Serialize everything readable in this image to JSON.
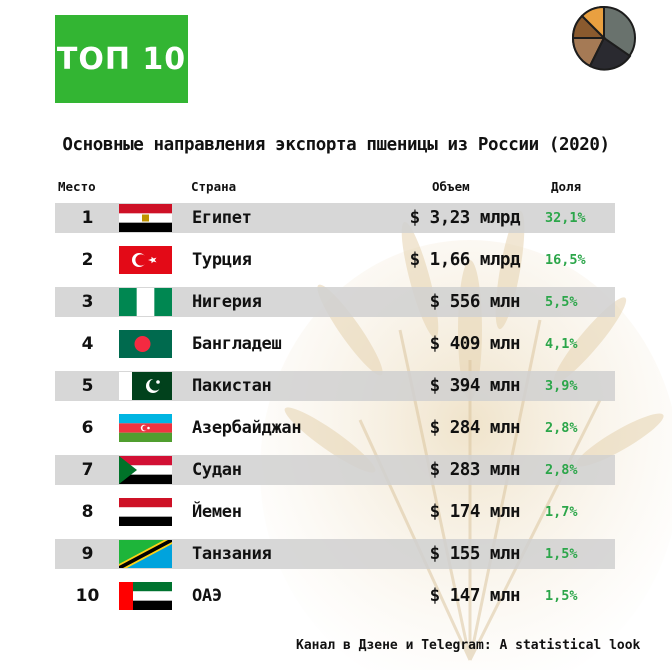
{
  "badge": "ТОП 10",
  "title": "Основные направления экспорта пшеницы из России (2020)",
  "headers": {
    "rank": "Место",
    "country": "Страна",
    "value": "Объем",
    "share": "Доля"
  },
  "footer": "Канал в Дзене и Telegram: A statistical look",
  "colors": {
    "badge": "#33b533",
    "share_text": "#2ca64a",
    "row_shade": "#d0d0d0"
  },
  "rows": [
    {
      "rank": "1",
      "country": "Египет",
      "value": "$ 3,23 млрд",
      "share": "32,1%",
      "flag": "egypt-flag"
    },
    {
      "rank": "2",
      "country": "Турция",
      "value": "$ 1,66 млрд",
      "share": "16,5%",
      "flag": "turkey-flag"
    },
    {
      "rank": "3",
      "country": "Нигерия",
      "value": "$ 556 млн",
      "share": "5,5%",
      "flag": "nigeria-flag"
    },
    {
      "rank": "4",
      "country": "Бангладеш",
      "value": "$ 409 млн",
      "share": "4,1%",
      "flag": "bangladesh-flag"
    },
    {
      "rank": "5",
      "country": "Пакистан",
      "value": "$ 394 млн",
      "share": "3,9%",
      "flag": "pakistan-flag"
    },
    {
      "rank": "6",
      "country": "Азербайджан",
      "value": "$ 284 млн",
      "share": "2,8%",
      "flag": "azerbaijan-flag"
    },
    {
      "rank": "7",
      "country": "Судан",
      "value": "$ 283 млн",
      "share": "2,8%",
      "flag": "sudan-flag"
    },
    {
      "rank": "8",
      "country": "Йемен",
      "value": "$ 174 млн",
      "share": "1,7%",
      "flag": "yemen-flag"
    },
    {
      "rank": "9",
      "country": "Танзания",
      "value": "$ 155 млн",
      "share": "1,5%",
      "flag": "tanzania-flag"
    },
    {
      "rank": "10",
      "country": "ОАЭ",
      "value": "$ 147 млн",
      "share": "1,5%",
      "flag": "uae-flag"
    }
  ],
  "chart_data": {
    "type": "table",
    "title": "Основные направления экспорта пшеницы из России (2020)",
    "columns": [
      "Место",
      "Страна",
      "Объем",
      "Доля"
    ],
    "rows": [
      [
        "1",
        "Египет",
        "$ 3,23 млрд",
        "32,1%"
      ],
      [
        "2",
        "Турция",
        "$ 1,66 млрд",
        "16,5%"
      ],
      [
        "3",
        "Нигерия",
        "$ 556 млн",
        "5,5%"
      ],
      [
        "4",
        "Бангладеш",
        "$ 409 млн",
        "4,1%"
      ],
      [
        "5",
        "Пакистан",
        "$ 394 млн",
        "3,9%"
      ],
      [
        "6",
        "Азербайджан",
        "$ 284 млн",
        "2,8%"
      ],
      [
        "7",
        "Судан",
        "$ 283 млн",
        "2,8%"
      ],
      [
        "8",
        "Йемен",
        "$ 174 млн",
        "1,7%"
      ],
      [
        "9",
        "Танзания",
        "$ 155 млн",
        "1,5%"
      ],
      [
        "10",
        "ОАЭ",
        "$ 147 млн",
        "1,5%"
      ]
    ]
  }
}
